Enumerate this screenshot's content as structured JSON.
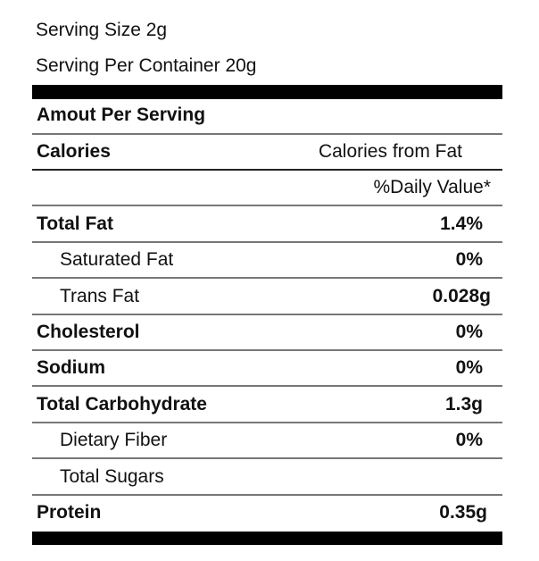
{
  "serving_size": "Serving Size  2g",
  "servings_per_container": "Serving Per Container  20g",
  "amount_per_serving": "Amout Per Serving",
  "calories_label": "Calories",
  "calories_from_fat_label": "Calories from Fat",
  "daily_value_label": "%Daily Value*",
  "nutrients": [
    {
      "name": "Total Fat",
      "value": "1.4%"
    },
    {
      "name": "Saturated Fat",
      "value": "0%"
    },
    {
      "name": "Trans Fat",
      "value": "0.028g"
    },
    {
      "name": "Cholesterol",
      "value": "0%"
    },
    {
      "name": "Sodium",
      "value": "0%"
    },
    {
      "name": "Total Carbohydrate",
      "value": "1.3g"
    },
    {
      "name": "Dietary Fiber",
      "value": "0%"
    },
    {
      "name": "Total Sugars",
      "value": ""
    },
    {
      "name": "Protein",
      "value": "0.35g"
    }
  ]
}
